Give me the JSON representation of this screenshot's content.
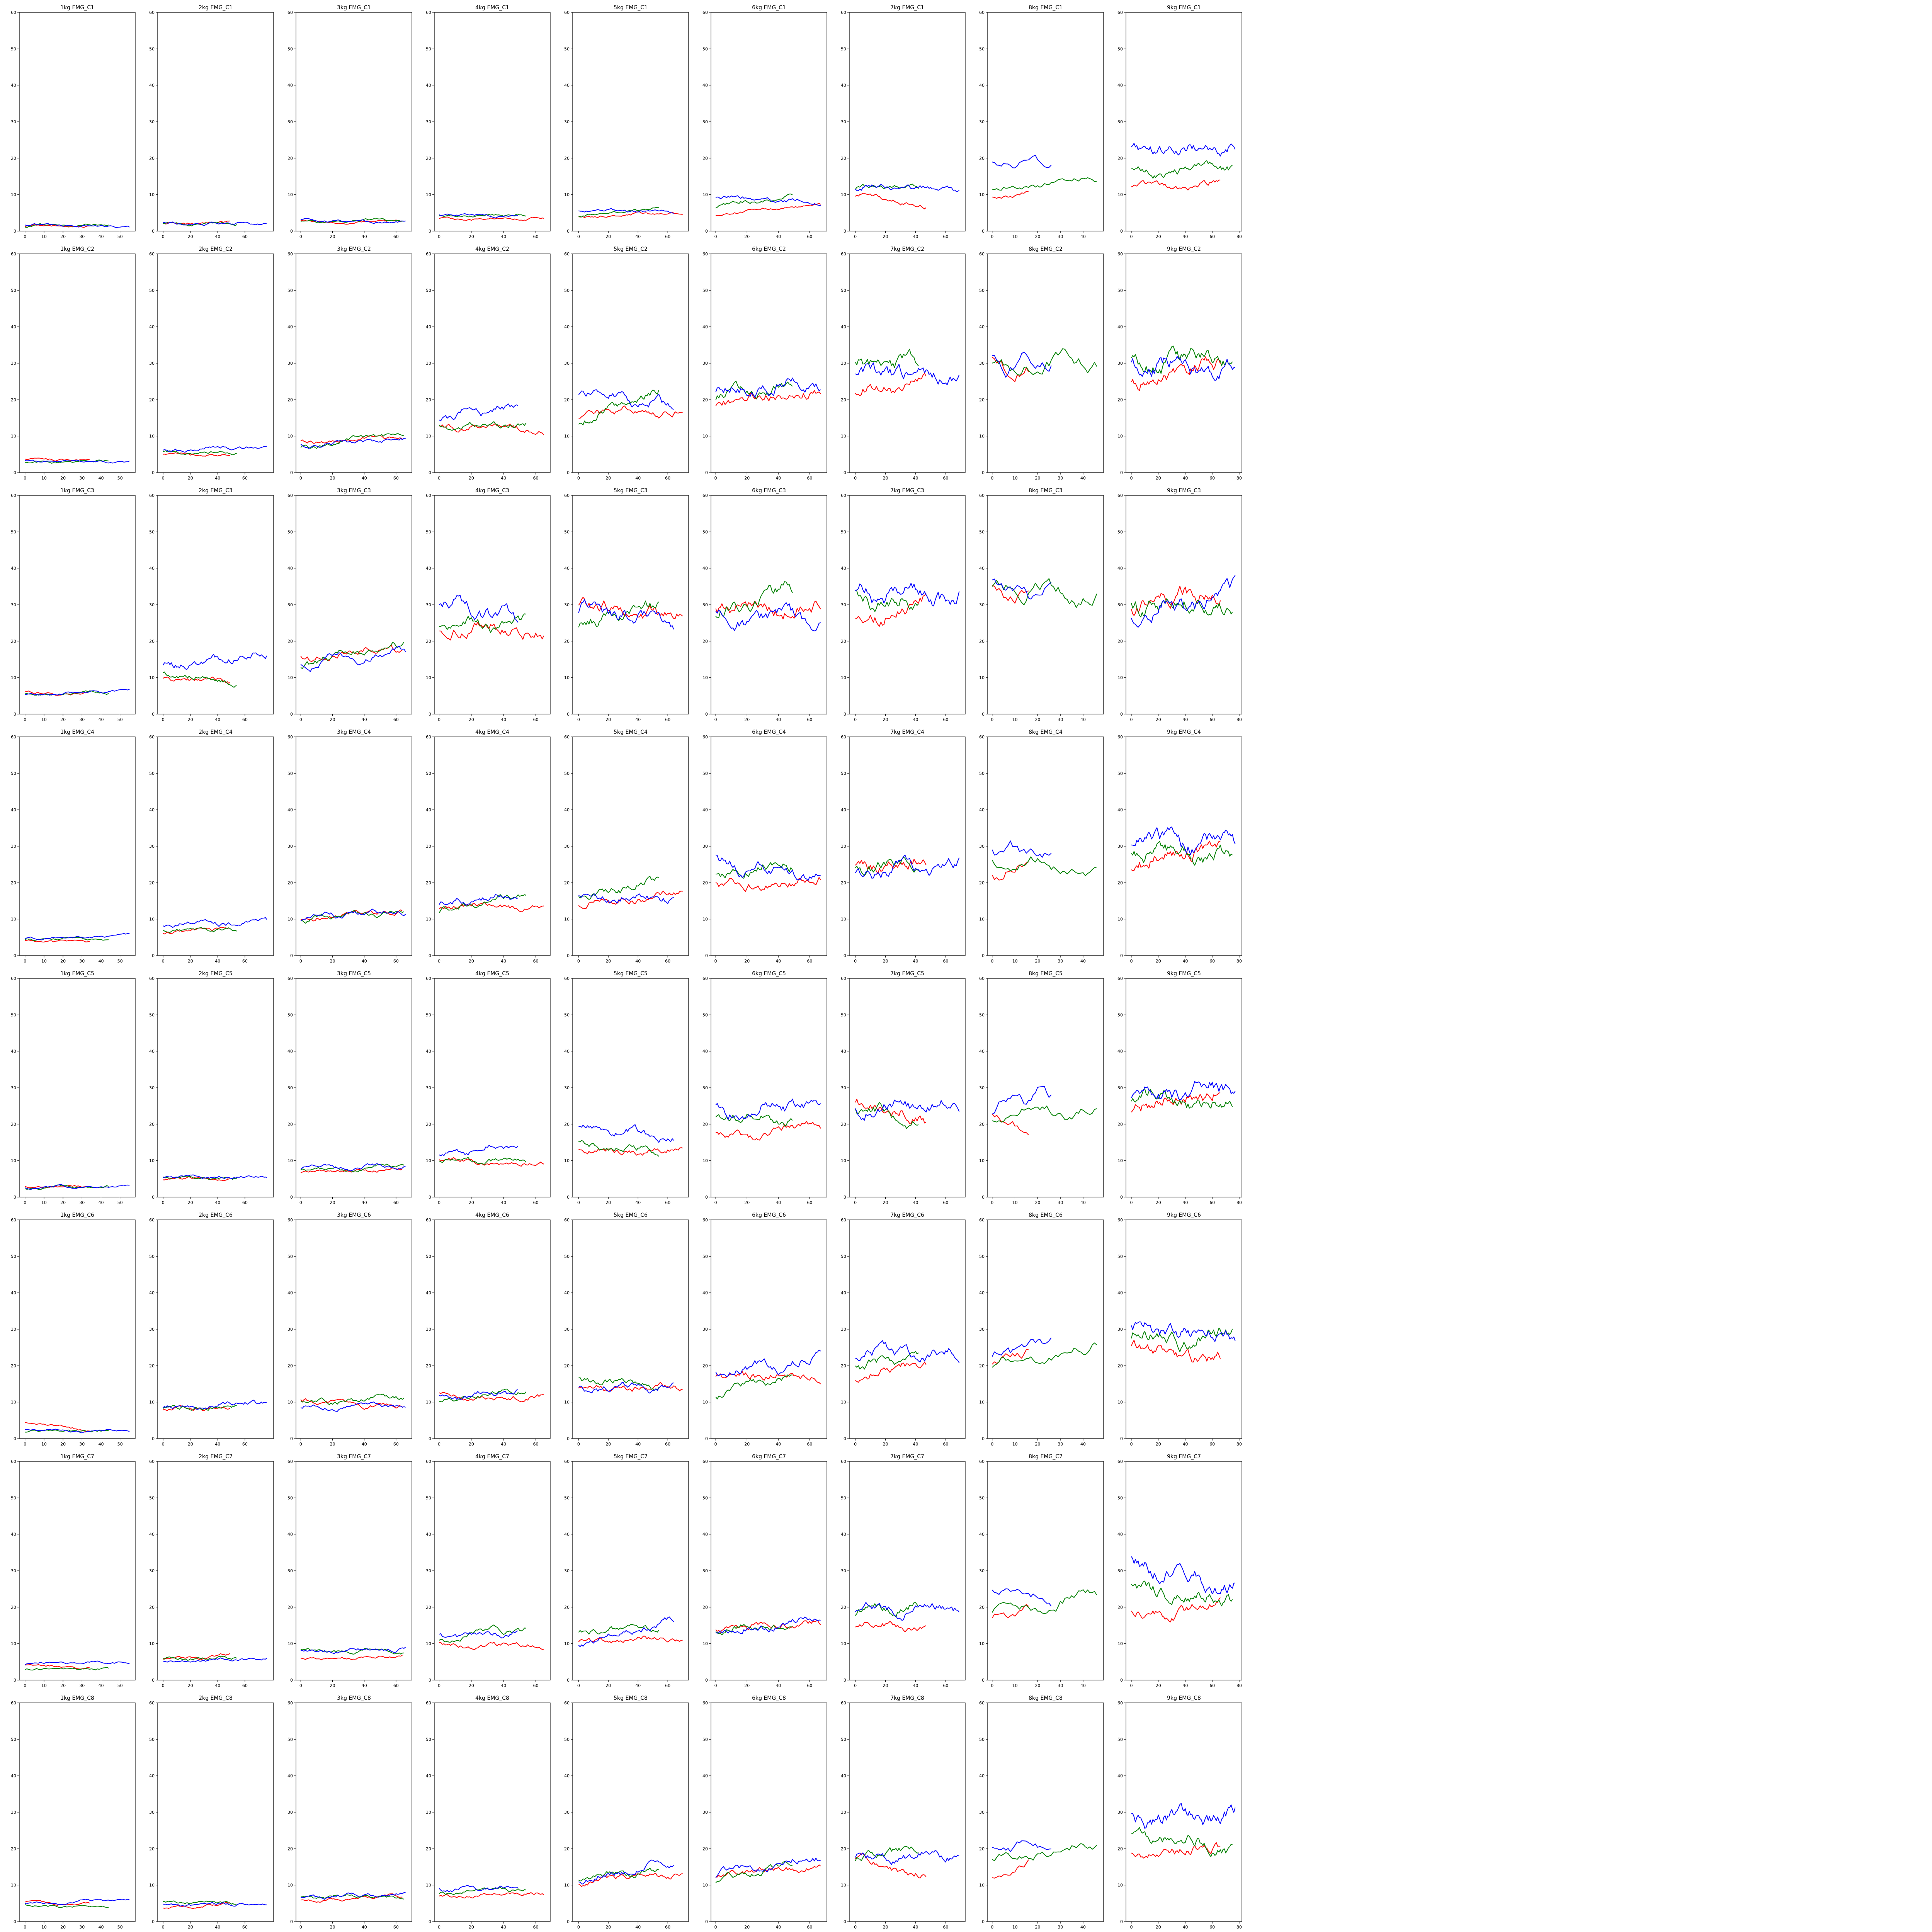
{
  "figure": {
    "weights": [
      "1kg",
      "2kg",
      "3kg",
      "4kg",
      "5kg",
      "6kg",
      "7kg",
      "8kg",
      "9kg"
    ],
    "channels": [
      "EMG_C1",
      "EMG_C2",
      "EMG_C3",
      "EMG_C4",
      "EMG_C5",
      "EMG_C6",
      "EMG_C7",
      "EMG_C8"
    ],
    "ylim": [
      0,
      60
    ],
    "yticks": [
      0,
      10,
      20,
      30,
      40,
      50,
      60
    ],
    "series_colors": {
      "red": "#ff0000",
      "green": "#008000",
      "blue": "#0000ff"
    },
    "weight_axes": {
      "1kg": {
        "n": {
          "red": 35,
          "green": 45,
          "blue": 56
        },
        "xlim": [
          -3,
          58
        ],
        "xticks": [
          0,
          10,
          20,
          30,
          40,
          50
        ]
      },
      "2kg": {
        "n": {
          "red": 50,
          "green": 55,
          "blue": 77
        },
        "xlim": [
          -4,
          81
        ],
        "xticks": [
          0,
          20,
          40,
          60
        ]
      },
      "3kg": {
        "n": {
          "red": 65,
          "green": 66,
          "blue": 67
        },
        "xlim": [
          -3,
          70
        ],
        "xticks": [
          0,
          20,
          40,
          60
        ]
      },
      "4kg": {
        "n": {
          "red": 66,
          "green": 55,
          "blue": 50
        },
        "xlim": [
          -3,
          69
        ],
        "xticks": [
          0,
          20,
          40,
          60
        ]
      },
      "5kg": {
        "n": {
          "red": 71,
          "green": 55,
          "blue": 65
        },
        "xlim": [
          -4,
          74
        ],
        "xticks": [
          0,
          20,
          40,
          60
        ]
      },
      "6kg": {
        "n": {
          "red": 68,
          "green": 50,
          "blue": 68
        },
        "xlim": [
          -3,
          71
        ],
        "xticks": [
          0,
          20,
          40,
          60
        ]
      },
      "7kg": {
        "n": {
          "red": 48,
          "green": 43,
          "blue": 70
        },
        "xlim": [
          -4,
          73
        ],
        "xticks": [
          0,
          20,
          40,
          60
        ]
      },
      "8kg": {
        "n": {
          "red": 17,
          "green": 47,
          "blue": 27
        },
        "xlim": [
          -2,
          49
        ],
        "xticks": [
          0,
          10,
          20,
          30,
          40
        ]
      },
      "9kg": {
        "n": {
          "red": 67,
          "green": 76,
          "blue": 78
        },
        "xlim": [
          -4,
          82
        ],
        "xticks": [
          0,
          20,
          40,
          60,
          80
        ]
      }
    }
  },
  "chart_data": {
    "type": "line",
    "layout": "grid of 8 rows (channels EMG_C1..EMG_C8) by 9 columns (1kg..9kg), each panel shows three series (red, green, blue)",
    "ylim": [
      0,
      60
    ],
    "levels": {
      "EMG_C1": [
        {
          "red": [
            1.2,
            1.5
          ],
          "green": [
            1.3,
            1.6
          ],
          "blue": [
            1.6,
            1.2
          ]
        },
        {
          "red": [
            2.1,
            2.3
          ],
          "green": [
            1.9,
            2.2
          ],
          "blue": [
            2.3,
            2.1
          ]
        },
        {
          "red": [
            2.6,
            2.5
          ],
          "green": [
            2.6,
            2.9
          ],
          "blue": [
            2.8,
            2.6
          ]
        },
        {
          "red": [
            3.5,
            3.3
          ],
          "green": [
            4.0,
            4.5
          ],
          "blue": [
            4.5,
            4.1
          ]
        },
        {
          "red": [
            4.0,
            5.0
          ],
          "green": [
            4.3,
            6.5
          ],
          "blue": [
            5.5,
            5.5
          ]
        },
        {
          "red": [
            4.5,
            7.5
          ],
          "green": [
            7.0,
            9.5
          ],
          "blue": [
            9.5,
            7.5
          ]
        },
        {
          "red": [
            10.0,
            7.0
          ],
          "green": [
            11.5,
            11.5
          ],
          "blue": [
            12.0,
            11.5
          ]
        },
        {
          "red": [
            9.0,
            10.5
          ],
          "green": [
            11.5,
            14.5
          ],
          "blue": [
            18.0,
            19.0
          ]
        },
        {
          "red": [
            12.0,
            13.0
          ],
          "green": [
            16.0,
            17.5
          ],
          "blue": [
            22.5,
            23.0
          ]
        }
      ],
      "EMG_C2": [
        {
          "red": [
            3.5,
            3.5
          ],
          "green": [
            2.8,
            3.2
          ],
          "blue": [
            3.0,
            3.0
          ]
        },
        {
          "red": [
            5.0,
            4.5
          ],
          "green": [
            5.5,
            5.5
          ],
          "blue": [
            6.0,
            7.5
          ]
        },
        {
          "red": [
            8.5,
            9.0
          ],
          "green": [
            7.0,
            11.0
          ],
          "blue": [
            7.5,
            9.0
          ]
        },
        {
          "red": [
            13.5,
            11.0
          ],
          "green": [
            13.0,
            13.5
          ],
          "blue": [
            15.0,
            18.0
          ]
        },
        {
          "red": [
            15.0,
            18.0
          ],
          "green": [
            14.0,
            22.0
          ],
          "blue": [
            23.0,
            17.5
          ]
        },
        {
          "red": [
            18.5,
            23.0
          ],
          "green": [
            21.0,
            24.5
          ],
          "blue": [
            22.0,
            25.0
          ]
        },
        {
          "red": [
            22.0,
            24.5
          ],
          "green": [
            29.0,
            30.0
          ],
          "blue": [
            27.0,
            27.0
          ]
        },
        {
          "red": [
            30.0,
            29.0
          ],
          "green": [
            29.5,
            30.0
          ],
          "blue": [
            30.0,
            30.5
          ]
        },
        {
          "red": [
            25.0,
            29.0
          ],
          "green": [
            30.0,
            31.0
          ],
          "blue": [
            30.0,
            28.5
          ]
        }
      ],
      "EMG_C3": [
        {
          "red": [
            6.0,
            5.5
          ],
          "green": [
            5.5,
            6.0
          ],
          "blue": [
            5.0,
            6.5
          ]
        },
        {
          "red": [
            10.0,
            8.5
          ],
          "green": [
            11.0,
            9.0
          ],
          "blue": [
            13.5,
            16.5
          ]
        },
        {
          "red": [
            16.0,
            17.5
          ],
          "green": [
            13.5,
            19.0
          ],
          "blue": [
            13.5,
            17.0
          ]
        },
        {
          "red": [
            24.0,
            23.0
          ],
          "green": [
            24.0,
            24.5
          ],
          "blue": [
            31.0,
            25.0
          ]
        },
        {
          "red": [
            29.0,
            27.0
          ],
          "green": [
            24.0,
            29.0
          ],
          "blue": [
            29.0,
            26.0
          ]
        },
        {
          "red": [
            28.0,
            30.0
          ],
          "green": [
            27.0,
            34.0
          ],
          "blue": [
            27.0,
            26.0
          ]
        },
        {
          "red": [
            26.0,
            31.0
          ],
          "green": [
            32.0,
            31.0
          ],
          "blue": [
            33.0,
            33.0
          ]
        },
        {
          "red": [
            34.0,
            31.0
          ],
          "green": [
            35.0,
            33.0
          ],
          "blue": [
            35.0,
            32.0
          ]
        },
        {
          "red": [
            30.0,
            32.5
          ],
          "green": [
            30.0,
            30.0
          ],
          "blue": [
            27.0,
            34.0
          ]
        }
      ],
      "EMG_C4": [
        {
          "red": [
            4.0,
            3.5
          ],
          "green": [
            4.5,
            4.5
          ],
          "blue": [
            4.5,
            5.5
          ]
        },
        {
          "red": [
            6.5,
            7.0
          ],
          "green": [
            7.0,
            7.0
          ],
          "blue": [
            8.5,
            9.5
          ]
        },
        {
          "red": [
            10.0,
            12.0
          ],
          "green": [
            10.0,
            12.0
          ],
          "blue": [
            10.5,
            12.0
          ]
        },
        {
          "red": [
            13.0,
            14.0
          ],
          "green": [
            12.5,
            16.5
          ],
          "blue": [
            14.0,
            16.5
          ]
        },
        {
          "red": [
            14.0,
            17.0
          ],
          "green": [
            15.5,
            21.0
          ],
          "blue": [
            16.5,
            16.0
          ]
        },
        {
          "red": [
            19.0,
            21.0
          ],
          "green": [
            22.0,
            25.0
          ],
          "blue": [
            26.0,
            21.0
          ]
        },
        {
          "red": [
            25.0,
            25.0
          ],
          "green": [
            23.0,
            27.0
          ],
          "blue": [
            22.5,
            24.5
          ]
        },
        {
          "red": [
            22.0,
            26.0
          ],
          "green": [
            27.0,
            22.0
          ],
          "blue": [
            28.5,
            27.0
          ]
        },
        {
          "red": [
            25.0,
            30.0
          ],
          "green": [
            28.0,
            27.5
          ],
          "blue": [
            31.5,
            31.0
          ]
        }
      ],
      "EMG_C5": [
        {
          "red": [
            3.0,
            3.0
          ],
          "green": [
            2.5,
            3.0
          ],
          "blue": [
            2.5,
            3.0
          ]
        },
        {
          "red": [
            5.0,
            5.0
          ],
          "green": [
            5.5,
            5.0
          ],
          "blue": [
            5.5,
            5.5
          ]
        },
        {
          "red": [
            6.5,
            8.0
          ],
          "green": [
            7.5,
            8.5
          ],
          "blue": [
            8.0,
            8.5
          ]
        },
        {
          "red": [
            10.0,
            9.5
          ],
          "green": [
            10.0,
            10.0
          ],
          "blue": [
            11.0,
            15.0
          ]
        },
        {
          "red": [
            13.0,
            12.5
          ],
          "green": [
            14.5,
            12.5
          ],
          "blue": [
            19.0,
            16.0
          ]
        },
        {
          "red": [
            17.0,
            18.5
          ],
          "green": [
            22.0,
            22.0
          ],
          "blue": [
            24.0,
            26.0
          ]
        },
        {
          "red": [
            27.0,
            21.0
          ],
          "green": [
            24.0,
            21.0
          ],
          "blue": [
            25.0,
            25.0
          ]
        },
        {
          "red": [
            23.0,
            17.0
          ],
          "green": [
            22.0,
            24.0
          ],
          "blue": [
            25.0,
            28.0
          ]
        },
        {
          "red": [
            24.0,
            30.0
          ],
          "green": [
            28.0,
            25.0
          ],
          "blue": [
            27.5,
            30.0
          ]
        }
      ],
      "EMG_C6": [
        {
          "red": [
            4.5,
            2.5
          ],
          "green": [
            2.0,
            2.0
          ],
          "blue": [
            2.5,
            2.0
          ]
        },
        {
          "red": [
            8.0,
            8.0
          ],
          "green": [
            8.0,
            8.5
          ],
          "blue": [
            8.5,
            10.0
          ]
        },
        {
          "red": [
            10.0,
            9.0
          ],
          "green": [
            10.0,
            11.0
          ],
          "blue": [
            8.5,
            9.0
          ]
        },
        {
          "red": [
            12.0,
            11.0
          ],
          "green": [
            10.0,
            14.0
          ],
          "blue": [
            11.0,
            13.0
          ]
        },
        {
          "red": [
            14.0,
            13.5
          ],
          "green": [
            16.0,
            14.5
          ],
          "blue": [
            14.0,
            14.0
          ]
        },
        {
          "red": [
            17.0,
            17.0
          ],
          "green": [
            12.0,
            18.0
          ],
          "blue": [
            18.0,
            22.0
          ]
        },
        {
          "red": [
            17.0,
            21.0
          ],
          "green": [
            20.0,
            21.0
          ],
          "blue": [
            23.0,
            23.0
          ]
        },
        {
          "red": [
            20.0,
            25.0
          ],
          "green": [
            20.0,
            25.0
          ],
          "blue": [
            24.0,
            27.0
          ]
        },
        {
          "red": [
            25.0,
            22.0
          ],
          "green": [
            28.0,
            28.0
          ],
          "blue": [
            30.0,
            28.0
          ]
        }
      ],
      "EMG_C7": [
        {
          "red": [
            4.0,
            3.5
          ],
          "green": [
            3.0,
            3.0
          ],
          "blue": [
            4.5,
            5.0
          ]
        },
        {
          "red": [
            5.5,
            7.0
          ],
          "green": [
            6.0,
            6.0
          ],
          "blue": [
            5.0,
            6.0
          ]
        },
        {
          "red": [
            6.0,
            6.5
          ],
          "green": [
            8.0,
            8.0
          ],
          "blue": [
            8.0,
            8.5
          ]
        },
        {
          "red": [
            10.0,
            9.0
          ],
          "green": [
            11.0,
            14.0
          ],
          "blue": [
            12.0,
            13.0
          ]
        },
        {
          "red": [
            11.0,
            11.0
          ],
          "green": [
            13.0,
            15.0
          ],
          "blue": [
            10.0,
            16.0
          ]
        },
        {
          "red": [
            14.0,
            16.0
          ],
          "green": [
            14.0,
            15.0
          ],
          "blue": [
            13.0,
            16.5
          ]
        },
        {
          "red": [
            15.0,
            15.0
          ],
          "green": [
            19.0,
            20.0
          ],
          "blue": [
            19.0,
            20.0
          ]
        },
        {
          "red": [
            17.5,
            19.0
          ],
          "green": [
            18.0,
            24.0
          ],
          "blue": [
            25.0,
            22.0
          ]
        },
        {
          "red": [
            18.0,
            21.0
          ],
          "green": [
            26.0,
            22.0
          ],
          "blue": [
            32.0,
            26.0
          ]
        }
      ],
      "EMG_C8": [
        {
          "red": [
            5.0,
            5.0
          ],
          "green": [
            4.5,
            4.0
          ],
          "blue": [
            5.0,
            6.0
          ]
        },
        {
          "red": [
            3.5,
            5.0
          ],
          "green": [
            5.5,
            5.0
          ],
          "blue": [
            4.5,
            5.0
          ]
        },
        {
          "red": [
            6.0,
            7.0
          ],
          "green": [
            6.5,
            7.0
          ],
          "blue": [
            6.5,
            7.5
          ]
        },
        {
          "red": [
            7.0,
            8.0
          ],
          "green": [
            8.0,
            9.0
          ],
          "blue": [
            9.0,
            9.0
          ]
        },
        {
          "red": [
            11.0,
            13.0
          ],
          "green": [
            11.5,
            13.5
          ],
          "blue": [
            11.5,
            16.0
          ]
        },
        {
          "red": [
            12.0,
            16.0
          ],
          "green": [
            11.0,
            16.0
          ],
          "blue": [
            13.0,
            18.0
          ]
        },
        {
          "red": [
            17.0,
            13.0
          ],
          "green": [
            17.0,
            20.0
          ],
          "blue": [
            17.0,
            19.0
          ]
        },
        {
          "red": [
            12.0,
            16.0
          ],
          "green": [
            16.0,
            22.0
          ],
          "blue": [
            20.0,
            22.0
          ]
        },
        {
          "red": [
            18.0,
            20.0
          ],
          "green": [
            24.0,
            20.0
          ],
          "blue": [
            28.0,
            29.0
          ]
        }
      ]
    }
  }
}
